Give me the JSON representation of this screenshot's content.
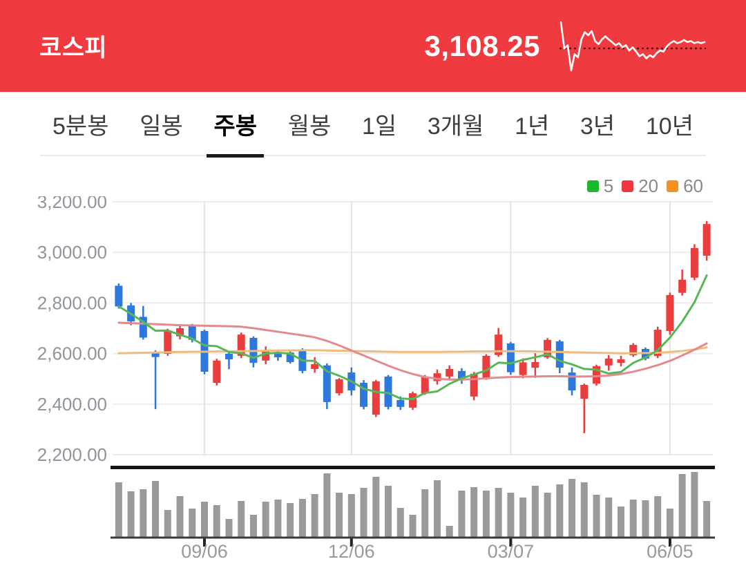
{
  "header": {
    "title": "코스피",
    "price": "3,108.25",
    "colors": {
      "bg": "#ef3b40",
      "text": "#ffffff",
      "spark_line": "#ffffff",
      "spark_ref": "#4a1313"
    },
    "sparkline": {
      "values": [
        96,
        46,
        52,
        4,
        35,
        29,
        63,
        77,
        71,
        79,
        60,
        54,
        63,
        69,
        63,
        58,
        52,
        56,
        48,
        52,
        42,
        48,
        40,
        31,
        35,
        27,
        33,
        29,
        37,
        42,
        40,
        50,
        56,
        60,
        56,
        58,
        62,
        58,
        60,
        56,
        58,
        56,
        58
      ],
      "ref_value": 46
    }
  },
  "tabs": {
    "items": [
      {
        "label": "5분봉",
        "active": false
      },
      {
        "label": "일봉",
        "active": false
      },
      {
        "label": "주봉",
        "active": true
      },
      {
        "label": "월봉",
        "active": false
      },
      {
        "label": "1일",
        "active": false
      },
      {
        "label": "3개월",
        "active": false
      },
      {
        "label": "1년",
        "active": false
      },
      {
        "label": "3년",
        "active": false
      },
      {
        "label": "10년",
        "active": false
      }
    ]
  },
  "chart_data": {
    "type": "candlestick",
    "title": "코스피 주봉",
    "legend": [
      {
        "label": "5",
        "color": "#1cb72c"
      },
      {
        "label": "20",
        "color": "#ee3740"
      },
      {
        "label": "60",
        "color": "#f3921e"
      }
    ],
    "y_axis": {
      "tick_labels": [
        "3,200.00",
        "3,000.00",
        "2,800.00",
        "2,600.00",
        "2,400.00",
        "2,200.00"
      ],
      "tick_values": [
        3200,
        3000,
        2800,
        2600,
        2400,
        2200
      ],
      "min": 2200,
      "max": 3200
    },
    "x_axis": {
      "ticks": [
        {
          "label": "09/06",
          "index": 7
        },
        {
          "label": "12/06",
          "index": 19
        },
        {
          "label": "03/07",
          "index": 32
        },
        {
          "label": "06/05",
          "index": 45
        }
      ]
    },
    "series": {
      "candles": [
        [
          2868,
          2877,
          2778,
          2786
        ],
        [
          2790,
          2800,
          2712,
          2727
        ],
        [
          2745,
          2788,
          2655,
          2663
        ],
        [
          2607,
          2613,
          2380,
          2586
        ],
        [
          2599,
          2698,
          2591,
          2692
        ],
        [
          2668,
          2712,
          2656,
          2700
        ],
        [
          2711,
          2717,
          2644,
          2654
        ],
        [
          2689,
          2694,
          2518,
          2528
        ],
        [
          2484,
          2579,
          2474,
          2572
        ],
        [
          2599,
          2606,
          2538,
          2577
        ],
        [
          2591,
          2683,
          2582,
          2675
        ],
        [
          2662,
          2668,
          2545,
          2563
        ],
        [
          2572,
          2628,
          2558,
          2613
        ],
        [
          2604,
          2614,
          2571,
          2585
        ],
        [
          2604,
          2610,
          2560,
          2566
        ],
        [
          2615,
          2621,
          2522,
          2531
        ],
        [
          2539,
          2586,
          2524,
          2558
        ],
        [
          2553,
          2561,
          2380,
          2408
        ],
        [
          2443,
          2503,
          2434,
          2498
        ],
        [
          2525,
          2545,
          2434,
          2454
        ],
        [
          2484,
          2495,
          2379,
          2389
        ],
        [
          2358,
          2496,
          2349,
          2490
        ],
        [
          2509,
          2515,
          2379,
          2389
        ],
        [
          2416,
          2430,
          2377,
          2389
        ],
        [
          2386,
          2449,
          2377,
          2443
        ],
        [
          2443,
          2515,
          2437,
          2509
        ],
        [
          2491,
          2537,
          2477,
          2522
        ],
        [
          2509,
          2553,
          2495,
          2539
        ],
        [
          2531,
          2542,
          2480,
          2495
        ],
        [
          2430,
          2527,
          2415,
          2520
        ],
        [
          2503,
          2597,
          2496,
          2591
        ],
        [
          2594,
          2701,
          2587,
          2675
        ],
        [
          2640,
          2646,
          2516,
          2526
        ],
        [
          2515,
          2581,
          2502,
          2565
        ],
        [
          2544,
          2601,
          2504,
          2566
        ],
        [
          2585,
          2661,
          2579,
          2654
        ],
        [
          2648,
          2654,
          2522,
          2544
        ],
        [
          2525,
          2545,
          2434,
          2454
        ],
        [
          2421,
          2481,
          2285,
          2476
        ],
        [
          2481,
          2556,
          2473,
          2550
        ],
        [
          2553,
          2594,
          2532,
          2580
        ],
        [
          2563,
          2591,
          2549,
          2577
        ],
        [
          2593,
          2641,
          2587,
          2634
        ],
        [
          2618,
          2624,
          2573,
          2580
        ],
        [
          2590,
          2706,
          2582,
          2694
        ],
        [
          2689,
          2841,
          2674,
          2831
        ],
        [
          2840,
          2932,
          2829,
          2892
        ],
        [
          2900,
          3032,
          2890,
          3017
        ],
        [
          2987,
          3124,
          2967,
          3112
        ]
      ],
      "volume_relative": [
        80,
        67,
        70,
        82,
        40,
        60,
        42,
        52,
        47,
        27,
        53,
        33,
        52,
        55,
        50,
        56,
        63,
        93,
        65,
        63,
        72,
        88,
        75,
        43,
        33,
        70,
        83,
        17,
        68,
        73,
        68,
        72,
        65,
        58,
        75,
        65,
        77,
        85,
        80,
        62,
        58,
        45,
        55,
        54,
        60,
        42,
        92,
        95,
        53
      ],
      "ma5": [
        2786,
        2757,
        2725,
        2690,
        2691,
        2674,
        2659,
        2632,
        2629,
        2606,
        2601,
        2583,
        2600,
        2603,
        2600,
        2572,
        2571,
        2530,
        2512,
        2490,
        2461,
        2448,
        2444,
        2422,
        2420,
        2444,
        2450,
        2480,
        2502,
        2517,
        2533,
        2564,
        2561,
        2575,
        2585,
        2597,
        2571,
        2557,
        2539,
        2536,
        2521,
        2527,
        2563,
        2584,
        2613,
        2663,
        2726,
        2803,
        2909
      ],
      "ma20": [
        2722,
        2720,
        2718,
        2716,
        2714,
        2712,
        2711,
        2710,
        2709,
        2708,
        2706,
        2700,
        2693,
        2686,
        2679,
        2672,
        2664,
        2650,
        2632,
        2612,
        2592,
        2572,
        2552,
        2534,
        2519,
        2507,
        2500,
        2497,
        2497,
        2499,
        2502,
        2505,
        2507,
        2508,
        2509,
        2510,
        2510,
        2509,
        2509,
        2510,
        2513,
        2519,
        2528,
        2540,
        2554,
        2571,
        2592,
        2615,
        2640
      ],
      "ma60": [
        2601,
        2602,
        2603,
        2604,
        2605,
        2606,
        2607,
        2607,
        2608,
        2608,
        2609,
        2610,
        2611,
        2612,
        2612,
        2613,
        2613,
        2612,
        2611,
        2610,
        2609,
        2608,
        2607,
        2606,
        2606,
        2606,
        2606,
        2607,
        2607,
        2608,
        2608,
        2609,
        2609,
        2609,
        2608,
        2607,
        2606,
        2605,
        2604,
        2603,
        2602,
        2601,
        2601,
        2602,
        2603,
        2606,
        2610,
        2616,
        2624
      ]
    },
    "colors": {
      "up": "#e83e3e",
      "down": "#2e77dc",
      "ma5": "#57b757",
      "ma20": "#e38a8d",
      "ma60": "#eebd7d",
      "volume": "#9a9a9a",
      "grid": "#ececec",
      "grid_vertical": "#e4e4e4",
      "axis_label": "#8f949c",
      "separator": "#151515",
      "baseline": "#3a3a3a"
    }
  }
}
